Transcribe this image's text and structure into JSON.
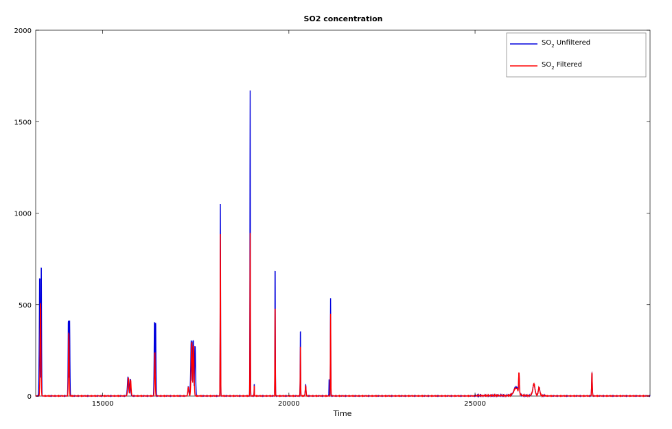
{
  "chart_data": {
    "type": "line",
    "title": "SO2 concentration",
    "xlabel": "Time",
    "ylabel": "",
    "xlim": [
      13200,
      29700
    ],
    "ylim": [
      0,
      2000
    ],
    "x_ticks": [
      15000,
      20000,
      25000
    ],
    "y_ticks": [
      0,
      500,
      1000,
      1500,
      2000
    ],
    "grid": false,
    "legend_position": "top-right",
    "legend": [
      {
        "prefix": "SO",
        "sub": "2",
        "suffix": " Unfiltered"
      },
      {
        "prefix": "SO",
        "sub": "2",
        "suffix": " Filtered"
      }
    ],
    "series": [
      {
        "name": "SO2 Unfiltered",
        "color": "#0000dd",
        "peaks": [
          [
            13310,
            40,
            640,
            8
          ],
          [
            13350,
            20,
            700,
            6
          ],
          [
            14080,
            25,
            410,
            8
          ],
          [
            14110,
            25,
            410,
            6
          ],
          [
            15680,
            45,
            100,
            20
          ],
          [
            15740,
            35,
            90,
            15
          ],
          [
            16390,
            25,
            400,
            8
          ],
          [
            16420,
            25,
            400,
            6
          ],
          [
            17300,
            40,
            50,
            12
          ],
          [
            17380,
            45,
            300,
            14
          ],
          [
            17430,
            40,
            300,
            12
          ],
          [
            17480,
            40,
            270,
            10
          ],
          [
            18160,
            15,
            1050,
            6
          ],
          [
            18960,
            15,
            1670,
            6
          ],
          [
            19070,
            10,
            70,
            4
          ],
          [
            19630,
            15,
            680,
            6
          ],
          [
            20310,
            15,
            350,
            6
          ],
          [
            20450,
            30,
            60,
            10
          ],
          [
            21120,
            15,
            535,
            6
          ],
          [
            21080,
            10,
            90,
            4
          ],
          [
            26100,
            170,
            45,
            60
          ],
          [
            26180,
            35,
            120,
            12
          ],
          [
            26580,
            90,
            60,
            30
          ],
          [
            26720,
            60,
            45,
            20
          ],
          [
            28140,
            25,
            125,
            8
          ]
        ]
      },
      {
        "name": "SO2 Filtered",
        "color": "#ff0000",
        "peaks": [
          [
            13330,
            35,
            505,
            8
          ],
          [
            14090,
            30,
            340,
            8
          ],
          [
            15690,
            45,
            95,
            20
          ],
          [
            15750,
            35,
            85,
            15
          ],
          [
            16400,
            30,
            230,
            8
          ],
          [
            17390,
            45,
            290,
            14
          ],
          [
            17440,
            40,
            270,
            12
          ],
          [
            17300,
            40,
            45,
            12
          ],
          [
            18160,
            15,
            885,
            6
          ],
          [
            18960,
            15,
            890,
            6
          ],
          [
            19070,
            10,
            60,
            4
          ],
          [
            19630,
            15,
            475,
            6
          ],
          [
            20310,
            15,
            265,
            6
          ],
          [
            20450,
            30,
            55,
            10
          ],
          [
            21120,
            15,
            450,
            6
          ],
          [
            26100,
            170,
            40,
            60
          ],
          [
            26180,
            35,
            125,
            12
          ],
          [
            26580,
            90,
            60,
            30
          ],
          [
            26720,
            60,
            45,
            20
          ],
          [
            28140,
            25,
            125,
            8
          ]
        ]
      }
    ]
  }
}
